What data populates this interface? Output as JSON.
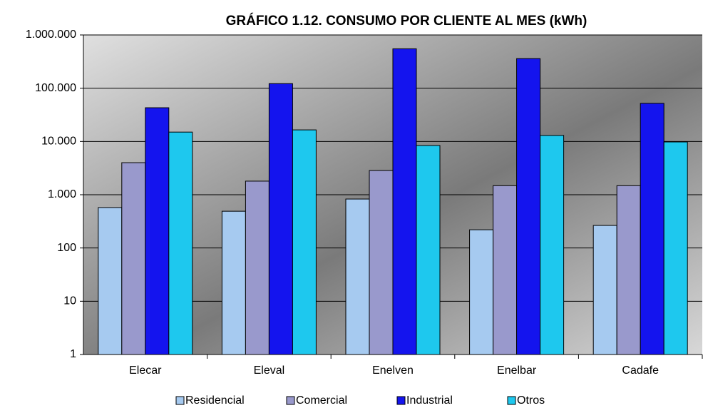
{
  "chart_data": {
    "type": "bar",
    "title": "GRÁFICO 1.12. CONSUMO POR CLIENTE AL MES (kWh)",
    "categories": [
      "Elecar",
      "Eleval",
      "Enelven",
      "Enelbar",
      "Cadafe"
    ],
    "series": [
      {
        "name": "Residencial",
        "color": "#a6caf0",
        "values": [
          575,
          490,
          830,
          220,
          265
        ]
      },
      {
        "name": "Comercial",
        "color": "#9999cc",
        "values": [
          4000,
          1800,
          2850,
          1480,
          1480
        ]
      },
      {
        "name": "Industrial",
        "color": "#1414ee",
        "values": [
          43000,
          122000,
          550000,
          360000,
          52000
        ]
      },
      {
        "name": "Otros",
        "color": "#1ec8ee",
        "values": [
          15000,
          16500,
          8400,
          13000,
          9800
        ]
      }
    ],
    "log_scale": true,
    "grid": true,
    "ylim": [
      1,
      1000000
    ],
    "yticks": [
      1,
      10,
      100,
      {
        "value": 1000,
        "label": "1.000"
      },
      {
        "value": 10000,
        "label": "10.000"
      },
      {
        "value": 100000,
        "label": "100.000"
      },
      {
        "value": 1000000,
        "label": "1.000.000"
      }
    ],
    "legend": "bottom"
  }
}
